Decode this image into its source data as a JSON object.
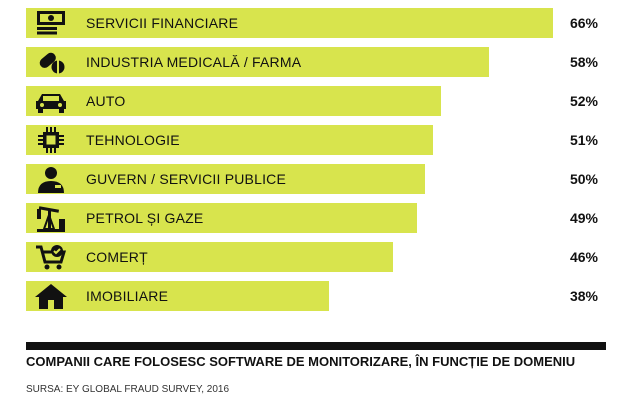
{
  "chart_data": {
    "type": "bar",
    "orientation": "horizontal",
    "categories": [
      "SERVICII FINANCIARE",
      "INDUSTRIA MEDICALĂ / FARMA",
      "AUTO",
      "TEHNOLOGIE",
      "GUVERN / SERVICII PUBLICE",
      "PETROL ȘI GAZE",
      "COMERȚ",
      "IMOBILIARE"
    ],
    "values": [
      66,
      58,
      52,
      51,
      50,
      49,
      46,
      38
    ],
    "value_labels": [
      "66%",
      "58%",
      "52%",
      "51%",
      "50%",
      "49%",
      "46%",
      "38%"
    ],
    "icons": [
      "banknotes-icon",
      "pills-icon",
      "car-icon",
      "chip-icon",
      "official-person-icon",
      "oil-pump-icon",
      "shopping-cart-icon",
      "house-icon"
    ],
    "bar_color": "#d8e44d",
    "title": "COMPANII CARE FOLOSESC SOFTWARE DE MONITORIZARE, ÎN FUNCȚIE DE DOMENIU",
    "source": "SURSA: EY GLOBAL FRAUD SURVEY, 2016",
    "xlim": [
      0,
      66
    ]
  }
}
